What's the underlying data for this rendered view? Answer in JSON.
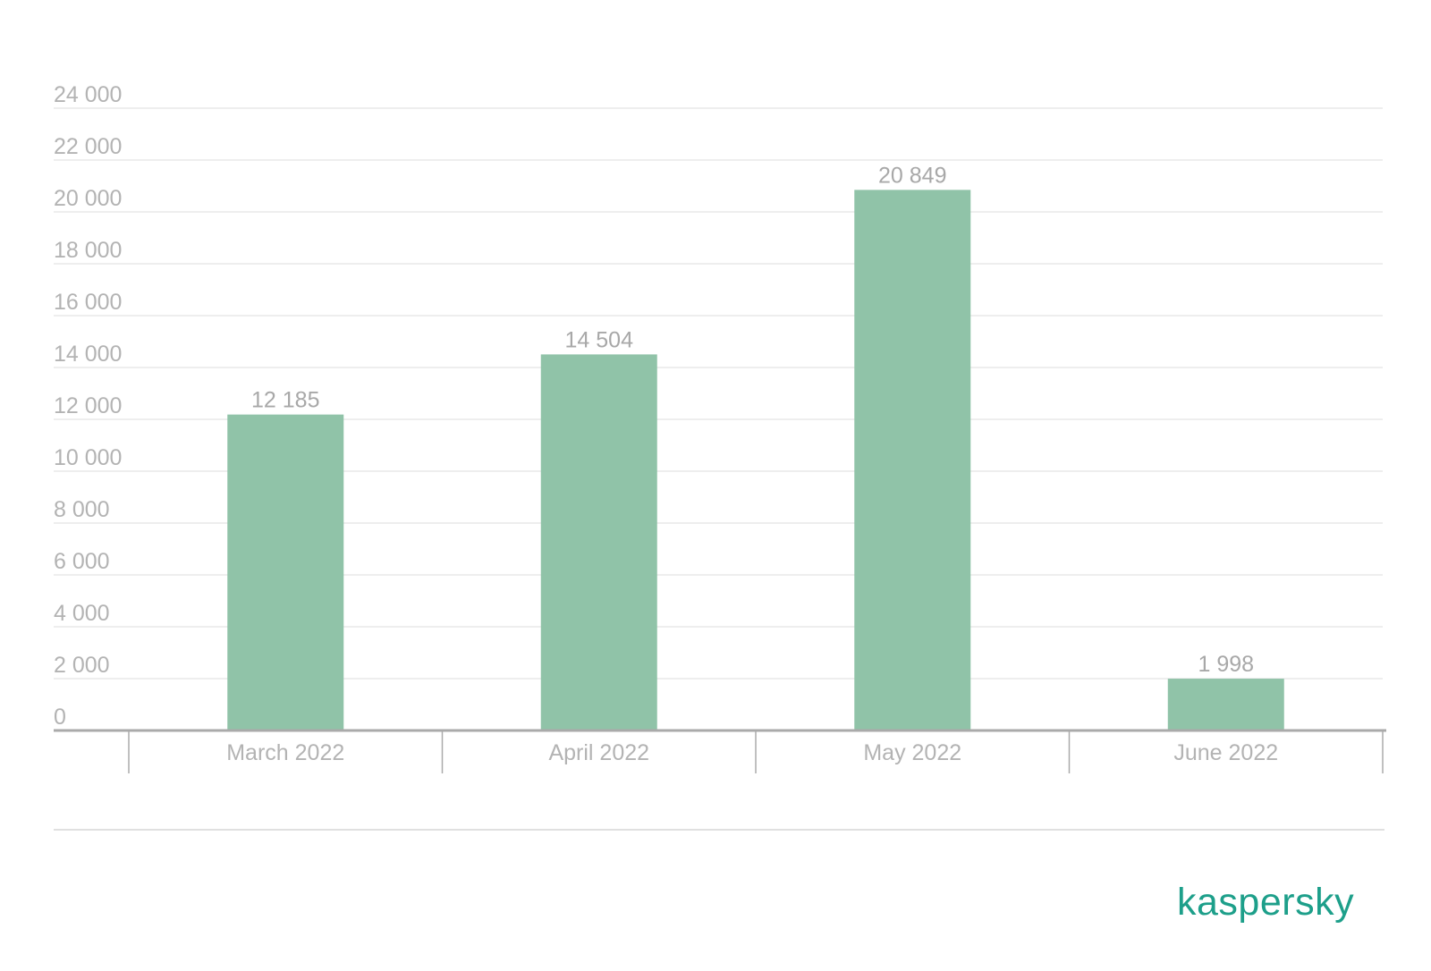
{
  "chart_data": {
    "type": "bar",
    "categories": [
      "March 2022",
      "April 2022",
      "May 2022",
      "June 2022"
    ],
    "values": [
      12185,
      14504,
      20849,
      1998
    ],
    "value_labels": [
      "12 185",
      "14 504",
      "20 849",
      "1 998"
    ],
    "yticks": [
      0,
      2000,
      4000,
      6000,
      8000,
      10000,
      12000,
      14000,
      16000,
      18000,
      20000,
      22000,
      24000
    ],
    "ytick_labels": [
      "0",
      "2 000",
      "4 000",
      "6 000",
      "8 000",
      "10 000",
      "12 000",
      "14 000",
      "16 000",
      "18 000",
      "20 000",
      "22 000",
      "24 000"
    ],
    "ylim": [
      0,
      24000
    ],
    "grid": true,
    "legend": "none",
    "colors": {
      "bar": "#90c3a8",
      "grid": "#e8e8e8",
      "axis": "#aaaaaa",
      "text": "#b3b3b3"
    }
  },
  "brand": {
    "logo_text": "kaspersky",
    "color": "#1d9f8a"
  }
}
